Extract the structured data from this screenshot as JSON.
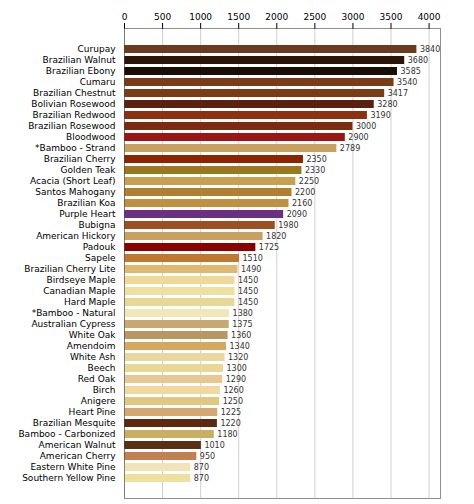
{
  "chart_data": {
    "type": "bar",
    "orientation": "horizontal",
    "categories": [
      "Curupay",
      "Brazilian Walnut",
      "Brazilian Ebony",
      "Cumaru",
      "Brazilian Chestnut",
      "Bolivian Rosewood",
      "Brazilian Redwood",
      "Brazilian Rosewood",
      "Bloodwood",
      "*Bamboo - Strand",
      "Brazilian Cherry",
      "Golden Teak",
      "Acacia (Short Leaf)",
      "Santos Mahogany",
      "Brazilian Koa",
      "Purple Heart",
      "Bubigna",
      "American Hickory",
      "Padouk",
      "Sapele",
      "Brazilian Cherry Lite",
      "Birdseye Maple",
      "Canadian Maple",
      "Hard Maple",
      "*Bamboo - Natural",
      "Australian Cypress",
      "White Oak",
      "Amendoim",
      "White Ash",
      "Beech",
      "Red Oak",
      "Birch",
      "Anigere",
      "Heart Pine",
      "Brazilian Mesquite",
      "Bamboo - Carbonized",
      "American Walnut",
      "American Cherry",
      "Eastern White Pine",
      "Southern Yellow Pine"
    ],
    "values": [
      3840,
      3680,
      3585,
      3540,
      3417,
      3280,
      3190,
      3000,
      2900,
      2789,
      2350,
      2330,
      2250,
      2200,
      2160,
      2090,
      1980,
      1820,
      1725,
      1510,
      1490,
      1450,
      1450,
      1450,
      1380,
      1375,
      1360,
      1340,
      1320,
      1300,
      1290,
      1260,
      1250,
      1225,
      1220,
      1180,
      1010,
      950,
      870,
      870
    ],
    "colors": [
      "#6b3a1f",
      "#2c1508",
      "#1a0d04",
      "#7a3c18",
      "#7a3c18",
      "#5a2010",
      "#8B3010",
      "#7a2c10",
      "#9B1515",
      "#c8a060",
      "#8B2500",
      "#9B7820",
      "#c8a050",
      "#b08030",
      "#c09040",
      "#6b3080",
      "#9B5020",
      "#c8a060",
      "#8B0000",
      "#c07830",
      "#e0b870",
      "#f0d898",
      "#f0e0a0",
      "#e8d898",
      "#f0e8b8",
      "#c8a870",
      "#b89860",
      "#d4a860",
      "#e8d8a0",
      "#e8d898",
      "#e8c890",
      "#f0d8a0",
      "#e0c880",
      "#d4a870",
      "#5c2810",
      "#c8b060",
      "#5a3015",
      "#c08050",
      "#f0e4b8",
      "#f0e0a0"
    ],
    "xlim": [
      0,
      4150
    ],
    "xticks": [
      0,
      500,
      1000,
      1500,
      2000,
      2500,
      3000,
      3500,
      4000
    ],
    "grid": true,
    "data_labels": true
  }
}
